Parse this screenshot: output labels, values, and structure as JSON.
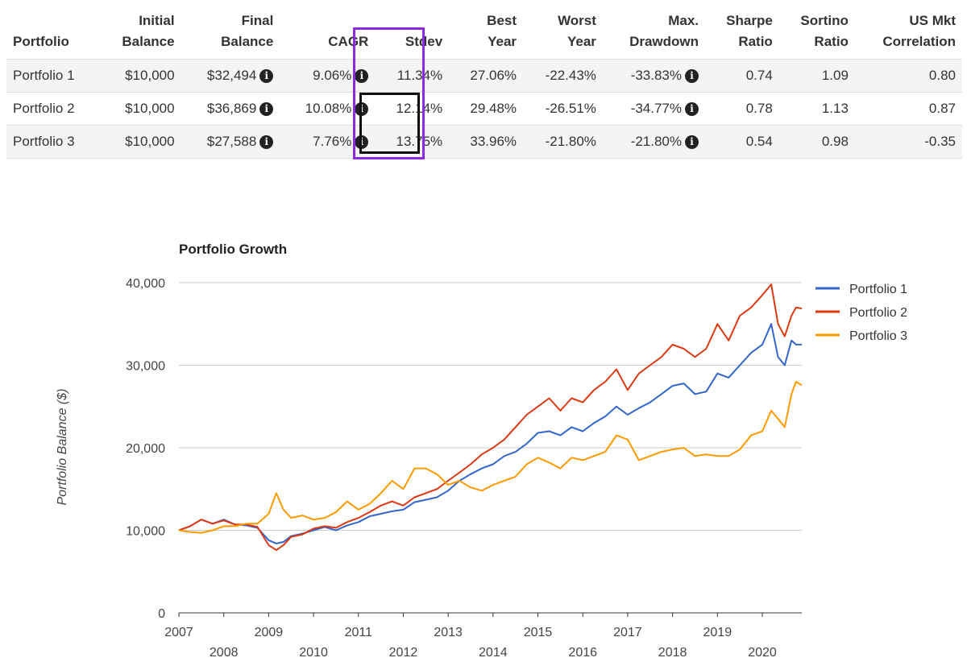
{
  "table": {
    "headers": [
      [
        "",
        "Portfolio"
      ],
      [
        "Initial",
        "Balance"
      ],
      [
        "Final",
        "Balance"
      ],
      [
        "",
        "CAGR"
      ],
      [
        "",
        "Stdev"
      ],
      [
        "Best",
        "Year"
      ],
      [
        "Worst",
        "Year"
      ],
      [
        "Max.",
        "Drawdown"
      ],
      [
        "Sharpe",
        "Ratio"
      ],
      [
        "Sortino",
        "Ratio"
      ],
      [
        "US Mkt",
        "Correlation"
      ]
    ],
    "rows": [
      {
        "portfolio": "Portfolio 1",
        "initial_balance": "$10,000",
        "final_balance": "$32,494",
        "cagr": "9.06%",
        "stdev": "11.34%",
        "best_year": "27.06%",
        "worst_year": "-22.43%",
        "max_drawdown": "-33.83%",
        "sharpe": "0.74",
        "sortino": "1.09",
        "us_mkt_corr": "0.80"
      },
      {
        "portfolio": "Portfolio 2",
        "initial_balance": "$10,000",
        "final_balance": "$36,869",
        "cagr": "10.08%",
        "stdev": "12.14%",
        "best_year": "29.48%",
        "worst_year": "-26.51%",
        "max_drawdown": "-34.77%",
        "sharpe": "0.78",
        "sortino": "1.13",
        "us_mkt_corr": "0.87"
      },
      {
        "portfolio": "Portfolio 3",
        "initial_balance": "$10,000",
        "final_balance": "$27,588",
        "cagr": "7.76%",
        "stdev": "13.75%",
        "best_year": "33.96%",
        "worst_year": "-21.80%",
        "max_drawdown": "-21.80%",
        "sharpe": "0.54",
        "sortino": "0.98",
        "us_mkt_corr": "-0.35"
      }
    ],
    "info_icon": "info-circle-icon",
    "highlight_colors": {
      "outer": "#8a2be2",
      "inner": "#111111"
    }
  },
  "chart_data": {
    "type": "line",
    "title": "Portfolio Growth",
    "ylabel": "Portfolio Balance ($)",
    "xlabel": "",
    "xlim": [
      2007.0,
      2020.88
    ],
    "ylim": [
      0,
      40000
    ],
    "yticks": [
      0,
      10000,
      20000,
      30000,
      40000
    ],
    "ytick_labels": [
      "0",
      "10,000",
      "20,000",
      "30,000",
      "40,000"
    ],
    "xticks": [
      2007,
      2008,
      2009,
      2010,
      2011,
      2012,
      2013,
      2014,
      2015,
      2016,
      2017,
      2018,
      2019,
      2020
    ],
    "grid": true,
    "legend_position": "top-right",
    "x": [
      2007.0,
      2007.25,
      2007.5,
      2007.75,
      2008.0,
      2008.25,
      2008.5,
      2008.75,
      2009.0,
      2009.17,
      2009.33,
      2009.5,
      2009.75,
      2010.0,
      2010.25,
      2010.5,
      2010.75,
      2011.0,
      2011.25,
      2011.5,
      2011.75,
      2012.0,
      2012.25,
      2012.5,
      2012.75,
      2013.0,
      2013.25,
      2013.5,
      2013.75,
      2014.0,
      2014.25,
      2014.5,
      2014.75,
      2015.0,
      2015.25,
      2015.5,
      2015.75,
      2016.0,
      2016.25,
      2016.5,
      2016.75,
      2017.0,
      2017.25,
      2017.5,
      2017.75,
      2018.0,
      2018.25,
      2018.5,
      2018.75,
      2019.0,
      2019.25,
      2019.5,
      2019.75,
      2020.0,
      2020.2,
      2020.35,
      2020.5,
      2020.65,
      2020.75,
      2020.88
    ],
    "series": [
      {
        "name": "Portfolio 1",
        "color": "#3366cc",
        "values": [
          10000,
          10500,
          11300,
          10800,
          11300,
          10700,
          10600,
          10300,
          8800,
          8400,
          8600,
          9300,
          9600,
          10000,
          10400,
          10000,
          10600,
          11000,
          11700,
          12000,
          12300,
          12500,
          13400,
          13700,
          14000,
          14800,
          16000,
          16800,
          17500,
          18000,
          19000,
          19500,
          20500,
          21800,
          22000,
          21500,
          22500,
          22000,
          23000,
          23800,
          25000,
          24000,
          24800,
          25500,
          26500,
          27500,
          27800,
          26500,
          26800,
          29000,
          28500,
          30000,
          31500,
          32500,
          35000,
          31000,
          30000,
          33000,
          32500,
          32494
        ]
      },
      {
        "name": "Portfolio 2",
        "color": "#dc3912",
        "values": [
          10000,
          10500,
          11300,
          10800,
          11200,
          10700,
          10700,
          10400,
          8200,
          7600,
          8200,
          9200,
          9500,
          10200,
          10500,
          10300,
          11000,
          11500,
          12200,
          13000,
          13500,
          13000,
          14000,
          14500,
          15000,
          16000,
          17000,
          18000,
          19200,
          20000,
          21000,
          22500,
          24000,
          25000,
          26000,
          24500,
          26000,
          25500,
          27000,
          28000,
          29500,
          27000,
          29000,
          30000,
          31000,
          32500,
          32000,
          31000,
          32000,
          35000,
          33000,
          36000,
          37000,
          38500,
          39800,
          35000,
          33500,
          36000,
          37000,
          36869
        ]
      },
      {
        "name": "Portfolio 3",
        "color": "#ff9900",
        "values": [
          10000,
          9800,
          9700,
          10000,
          10500,
          10500,
          10800,
          10800,
          12000,
          14500,
          12500,
          11500,
          11800,
          11300,
          11500,
          12200,
          13500,
          12500,
          13200,
          14500,
          16000,
          15000,
          17500,
          17500,
          16800,
          15500,
          16000,
          15200,
          14800,
          15500,
          16000,
          16500,
          18000,
          18800,
          18200,
          17500,
          18800,
          18500,
          19000,
          19500,
          21500,
          21000,
          18500,
          19000,
          19500,
          19800,
          20000,
          19000,
          19200,
          19000,
          19000,
          19800,
          21500,
          22000,
          24500,
          23500,
          22500,
          26500,
          28000,
          27588
        ]
      }
    ]
  }
}
